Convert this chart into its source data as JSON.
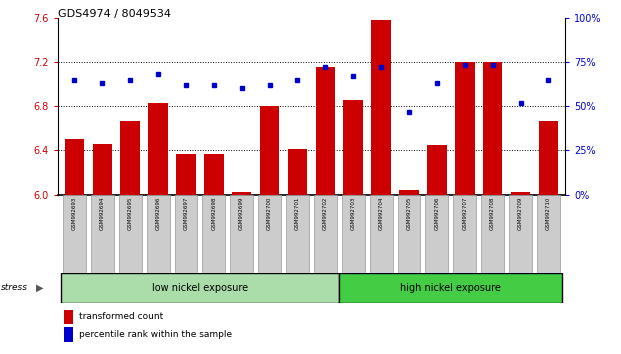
{
  "title": "GDS4974 / 8049534",
  "samples": [
    "GSM992693",
    "GSM992694",
    "GSM992695",
    "GSM992696",
    "GSM992697",
    "GSM992698",
    "GSM992699",
    "GSM992700",
    "GSM992701",
    "GSM992702",
    "GSM992703",
    "GSM992704",
    "GSM992705",
    "GSM992706",
    "GSM992707",
    "GSM992708",
    "GSM992709",
    "GSM992710"
  ],
  "transformed_count": [
    6.5,
    6.46,
    6.67,
    6.83,
    6.37,
    6.37,
    6.02,
    6.8,
    6.41,
    7.15,
    6.86,
    7.58,
    6.04,
    6.45,
    7.2,
    7.2,
    6.02,
    6.67
  ],
  "percentile_rank": [
    65,
    63,
    65,
    68,
    62,
    62,
    60,
    62,
    65,
    72,
    67,
    72,
    47,
    63,
    73,
    73,
    52,
    65
  ],
  "bar_color": "#cc0000",
  "dot_color": "#0000cc",
  "bar_bottom": 6.0,
  "left_ylim": [
    6.0,
    7.6
  ],
  "left_yticks": [
    6.0,
    6.4,
    6.8,
    7.2,
    7.6
  ],
  "right_ylim": [
    0,
    100
  ],
  "right_yticks": [
    0,
    25,
    50,
    75,
    100
  ],
  "right_yticklabels": [
    "0%",
    "25%",
    "50%",
    "75%",
    "100%"
  ],
  "group1_label": "low nickel exposure",
  "group2_label": "high nickel exposure",
  "group1_count": 10,
  "group2_count": 8,
  "stress_label": "stress",
  "legend1": "transformed count",
  "legend2": "percentile rank within the sample",
  "group1_color": "#aaddaa",
  "group2_color": "#44cc44",
  "xticklabel_bg": "#cccccc",
  "grid_yticks": [
    6.4,
    6.8,
    7.2
  ]
}
